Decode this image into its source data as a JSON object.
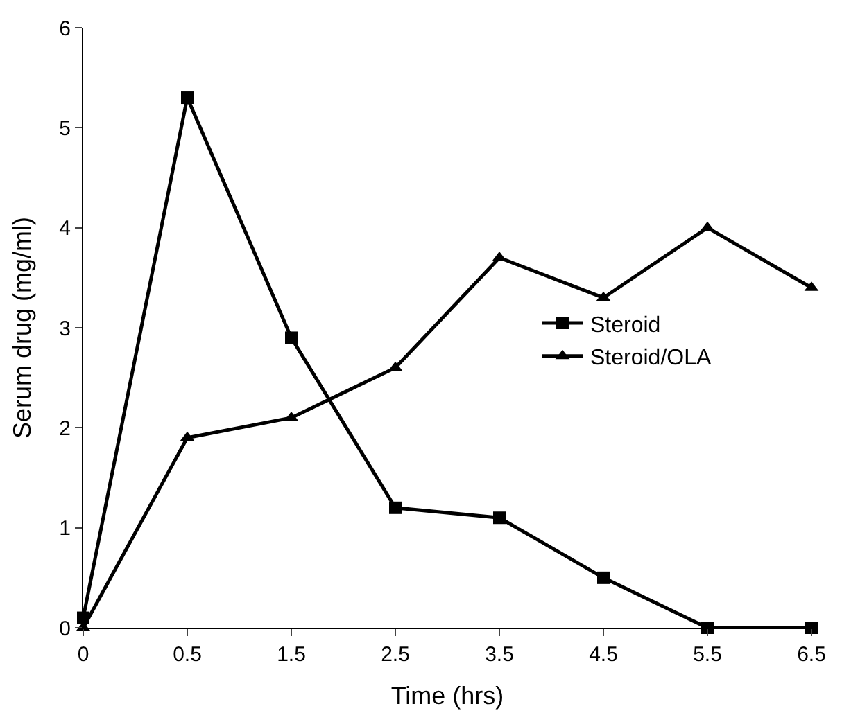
{
  "chart_data": {
    "type": "line",
    "xlabel": "Time (hrs)",
    "ylabel": "Serum drug (mg/ml)",
    "categories": [
      "0",
      "0.5",
      "1.5",
      "2.5",
      "3.5",
      "4.5",
      "5.5",
      "6.5"
    ],
    "series": [
      {
        "name": "Steroid",
        "color": "#000000",
        "marker": "square",
        "values": [
          0.1,
          5.3,
          2.9,
          1.2,
          1.1,
          0.5,
          0,
          0
        ]
      },
      {
        "name": "Steroid/OLA",
        "color": "#000000",
        "marker": "triangle",
        "values": [
          0,
          1.9,
          2.1,
          2.6,
          3.7,
          3.3,
          4.0,
          3.4
        ]
      }
    ],
    "ylim": [
      0,
      6
    ],
    "yticks": [
      0,
      1,
      2,
      3,
      4,
      5,
      6
    ],
    "legend": "right",
    "line_style": "solid"
  }
}
